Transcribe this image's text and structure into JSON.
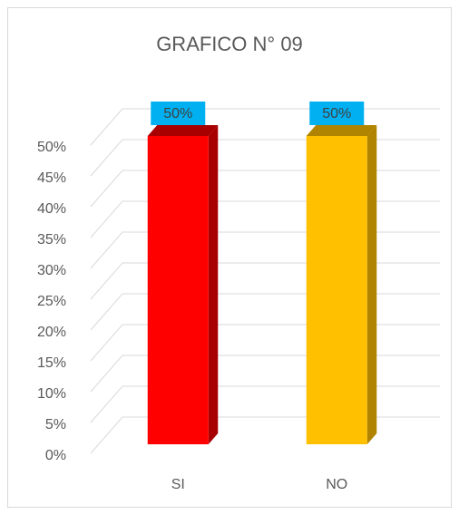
{
  "chart_data": {
    "type": "bar3d",
    "title": "GRAFICO N° 09",
    "categories": [
      "SI",
      "NO"
    ],
    "values": [
      50,
      50
    ],
    "value_labels": [
      "50%",
      "50%"
    ],
    "colors": [
      "#ff0000",
      "#ffc000"
    ],
    "side_colors": [
      "#a80000",
      "#b08300"
    ],
    "label_box_color": "#00b0f0",
    "ylim": [
      0,
      50
    ],
    "yticks": [
      {
        "value": 0,
        "label": "0%"
      },
      {
        "value": 5,
        "label": "5%"
      },
      {
        "value": 10,
        "label": "10%"
      },
      {
        "value": 15,
        "label": "15%"
      },
      {
        "value": 20,
        "label": "20%"
      },
      {
        "value": 25,
        "label": "25%"
      },
      {
        "value": 30,
        "label": "30%"
      },
      {
        "value": 35,
        "label": "35%"
      },
      {
        "value": 40,
        "label": "40%"
      },
      {
        "value": 45,
        "label": "45%"
      },
      {
        "value": 50,
        "label": "50%"
      }
    ],
    "grid": true
  }
}
